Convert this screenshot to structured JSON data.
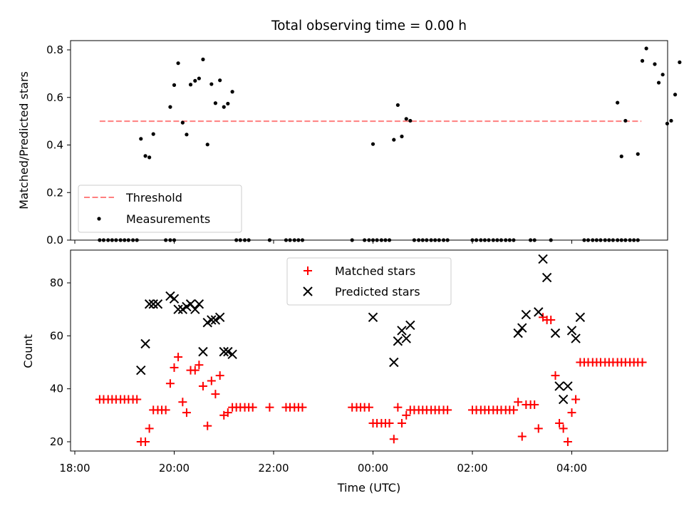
{
  "chart_data": [
    {
      "type": "scatter",
      "title": "Total observing time = 0.00 h",
      "xlabel": "",
      "ylabel": "Matched/Predicted stars",
      "xlim": [
        18.0,
        6.0
      ],
      "ylim": [
        0.0,
        0.85
      ],
      "yticks": [
        "0.0",
        "0.2",
        "0.4",
        "0.6",
        "0.8"
      ],
      "yticks_values": [
        0.0,
        0.2,
        0.4,
        0.6,
        0.8
      ],
      "legend_position": "lower-left",
      "threshold": {
        "name": "Threshold",
        "y": 0.5,
        "x_from": 18.5,
        "x_to": 29.4,
        "color": "#ff7f7f"
      },
      "measurements": {
        "name": "Measurements",
        "color": "#000000",
        "points": [
          [
            18.5,
            0
          ],
          [
            18.58,
            0
          ],
          [
            18.67,
            0
          ],
          [
            18.75,
            0
          ],
          [
            18.83,
            0
          ],
          [
            18.92,
            0
          ],
          [
            19.0,
            0
          ],
          [
            19.08,
            0
          ],
          [
            19.17,
            0
          ],
          [
            19.25,
            0
          ],
          [
            19.83,
            0
          ],
          [
            19.92,
            0
          ],
          [
            20.0,
            0
          ],
          [
            21.25,
            0
          ],
          [
            21.33,
            0
          ],
          [
            21.42,
            0
          ],
          [
            21.5,
            0
          ],
          [
            21.92,
            0
          ],
          [
            22.25,
            0
          ],
          [
            22.33,
            0
          ],
          [
            22.42,
            0
          ],
          [
            22.5,
            0
          ],
          [
            22.58,
            0
          ],
          [
            23.58,
            0
          ],
          [
            23.83,
            0
          ],
          [
            23.92,
            0
          ],
          [
            24.0,
            0
          ],
          [
            24.08,
            0
          ],
          [
            24.17,
            0
          ],
          [
            24.25,
            0
          ],
          [
            24.33,
            0
          ],
          [
            24.83,
            0
          ],
          [
            24.92,
            0
          ],
          [
            25.0,
            0
          ],
          [
            25.08,
            0
          ],
          [
            25.17,
            0
          ],
          [
            25.25,
            0
          ],
          [
            25.33,
            0
          ],
          [
            25.42,
            0
          ],
          [
            25.5,
            0
          ],
          [
            26.0,
            0
          ],
          [
            26.08,
            0
          ],
          [
            26.17,
            0
          ],
          [
            26.25,
            0
          ],
          [
            26.33,
            0
          ],
          [
            26.42,
            0
          ],
          [
            26.5,
            0
          ],
          [
            26.58,
            0
          ],
          [
            26.67,
            0
          ],
          [
            26.75,
            0
          ],
          [
            26.83,
            0
          ],
          [
            27.17,
            0
          ],
          [
            27.25,
            0
          ],
          [
            27.58,
            0
          ],
          [
            28.25,
            0
          ],
          [
            28.33,
            0
          ],
          [
            28.42,
            0
          ],
          [
            28.5,
            0
          ],
          [
            28.58,
            0
          ],
          [
            28.67,
            0
          ],
          [
            28.75,
            0
          ],
          [
            28.83,
            0
          ],
          [
            28.92,
            0
          ],
          [
            29.0,
            0
          ],
          [
            29.08,
            0
          ],
          [
            29.17,
            0
          ],
          [
            29.25,
            0
          ],
          [
            29.33,
            0
          ],
          [
            19.33,
            0.426
          ],
          [
            19.42,
            0.354
          ],
          [
            19.5,
            0.348
          ],
          [
            19.58,
            0.446
          ],
          [
            19.92,
            0.56
          ],
          [
            20.0,
            0.652
          ],
          [
            20.08,
            0.744
          ],
          [
            20.17,
            0.494
          ],
          [
            20.25,
            0.444
          ],
          [
            20.33,
            0.654
          ],
          [
            20.42,
            0.67
          ],
          [
            20.5,
            0.68
          ],
          [
            20.58,
            0.76
          ],
          [
            20.67,
            0.402
          ],
          [
            20.75,
            0.656
          ],
          [
            20.83,
            0.576
          ],
          [
            20.92,
            0.672
          ],
          [
            21.0,
            0.56
          ],
          [
            21.08,
            0.574
          ],
          [
            21.17,
            0.624
          ],
          [
            24.0,
            0.404
          ],
          [
            24.42,
            0.422
          ],
          [
            24.5,
            0.568
          ],
          [
            24.58,
            0.436
          ],
          [
            24.67,
            0.51
          ],
          [
            24.75,
            0.502
          ],
          [
            28.92,
            0.578
          ],
          [
            29.0,
            0.352
          ],
          [
            29.08,
            0.502
          ],
          [
            29.33,
            0.362
          ],
          [
            29.42,
            0.754
          ],
          [
            29.5,
            0.806
          ],
          [
            29.67,
            0.74
          ],
          [
            29.75,
            0.662
          ],
          [
            29.83,
            0.696
          ],
          [
            29.92,
            0.49
          ],
          [
            30.0,
            0.502
          ],
          [
            30.08,
            0.612
          ],
          [
            30.17,
            0.748
          ]
        ]
      }
    },
    {
      "type": "scatter",
      "title": "",
      "xlabel": "Time (UTC)",
      "ylabel": "Count",
      "xlim": [
        18.0,
        6.0
      ],
      "ylim": [
        16,
        93
      ],
      "yticks": [
        "20",
        "40",
        "60",
        "80"
      ],
      "yticks_values": [
        20,
        40,
        60,
        80
      ],
      "xticks": [
        "18:00",
        "20:00",
        "22:00",
        "00:00",
        "02:00",
        "04:00"
      ],
      "xticks_values": [
        18,
        20,
        22,
        24,
        26,
        28
      ],
      "legend_position": "upper-center",
      "series": [
        {
          "name": "Matched stars",
          "marker": "plus",
          "color": "#ff0000",
          "points": [
            [
              18.5,
              36
            ],
            [
              18.58,
              36
            ],
            [
              18.67,
              36
            ],
            [
              18.75,
              36
            ],
            [
              18.83,
              36
            ],
            [
              18.92,
              36
            ],
            [
              19.0,
              36
            ],
            [
              19.08,
              36
            ],
            [
              19.17,
              36
            ],
            [
              19.25,
              36
            ],
            [
              19.33,
              20
            ],
            [
              19.42,
              20
            ],
            [
              19.5,
              25
            ],
            [
              19.58,
              32
            ],
            [
              19.67,
              32
            ],
            [
              19.75,
              32
            ],
            [
              19.83,
              32
            ],
            [
              19.92,
              42
            ],
            [
              20.0,
              48
            ],
            [
              20.08,
              52
            ],
            [
              20.17,
              35
            ],
            [
              20.25,
              31
            ],
            [
              20.33,
              47
            ],
            [
              20.42,
              47
            ],
            [
              20.5,
              49
            ],
            [
              20.58,
              41
            ],
            [
              20.67,
              26
            ],
            [
              20.75,
              43
            ],
            [
              20.83,
              38
            ],
            [
              20.92,
              45
            ],
            [
              21.0,
              30
            ],
            [
              21.08,
              31
            ],
            [
              21.17,
              33
            ],
            [
              21.25,
              33
            ],
            [
              21.33,
              33
            ],
            [
              21.42,
              33
            ],
            [
              21.5,
              33
            ],
            [
              21.58,
              33
            ],
            [
              21.92,
              33
            ],
            [
              22.25,
              33
            ],
            [
              22.33,
              33
            ],
            [
              22.42,
              33
            ],
            [
              22.5,
              33
            ],
            [
              22.58,
              33
            ],
            [
              23.58,
              33
            ],
            [
              23.67,
              33
            ],
            [
              23.75,
              33
            ],
            [
              23.83,
              33
            ],
            [
              23.92,
              33
            ],
            [
              24.0,
              27
            ],
            [
              24.08,
              27
            ],
            [
              24.17,
              27
            ],
            [
              24.25,
              27
            ],
            [
              24.33,
              27
            ],
            [
              24.42,
              21
            ],
            [
              24.5,
              33
            ],
            [
              24.58,
              27
            ],
            [
              24.67,
              30
            ],
            [
              24.75,
              32
            ],
            [
              24.83,
              32
            ],
            [
              24.92,
              32
            ],
            [
              25.0,
              32
            ],
            [
              25.08,
              32
            ],
            [
              25.17,
              32
            ],
            [
              25.25,
              32
            ],
            [
              25.33,
              32
            ],
            [
              25.42,
              32
            ],
            [
              25.5,
              32
            ],
            [
              26.0,
              32
            ],
            [
              26.08,
              32
            ],
            [
              26.17,
              32
            ],
            [
              26.25,
              32
            ],
            [
              26.33,
              32
            ],
            [
              26.42,
              32
            ],
            [
              26.5,
              32
            ],
            [
              26.58,
              32
            ],
            [
              26.67,
              32
            ],
            [
              26.75,
              32
            ],
            [
              26.83,
              32
            ],
            [
              26.92,
              35
            ],
            [
              27.0,
              22
            ],
            [
              27.08,
              34
            ],
            [
              27.17,
              34
            ],
            [
              27.25,
              34
            ],
            [
              27.33,
              25
            ],
            [
              27.42,
              67
            ],
            [
              27.5,
              66
            ],
            [
              27.58,
              66
            ],
            [
              27.67,
              45
            ],
            [
              27.75,
              27
            ],
            [
              27.83,
              25
            ],
            [
              27.92,
              20
            ],
            [
              28.0,
              31
            ],
            [
              28.08,
              36
            ],
            [
              28.17,
              50
            ],
            [
              28.25,
              50
            ],
            [
              28.33,
              50
            ],
            [
              28.42,
              50
            ],
            [
              28.5,
              50
            ],
            [
              28.58,
              50
            ],
            [
              28.67,
              50
            ],
            [
              28.75,
              50
            ],
            [
              28.83,
              50
            ],
            [
              28.92,
              50
            ],
            [
              29.0,
              50
            ],
            [
              29.08,
              50
            ],
            [
              29.17,
              50
            ],
            [
              29.25,
              50
            ],
            [
              29.33,
              50
            ],
            [
              29.42,
              50
            ]
          ]
        },
        {
          "name": "Predicted stars",
          "marker": "x",
          "color": "#000000",
          "points": [
            [
              19.33,
              47
            ],
            [
              19.42,
              57
            ],
            [
              19.5,
              72
            ],
            [
              19.58,
              72
            ],
            [
              19.67,
              72
            ],
            [
              19.92,
              75
            ],
            [
              20.0,
              74
            ],
            [
              20.08,
              70
            ],
            [
              20.17,
              70
            ],
            [
              20.25,
              71
            ],
            [
              20.33,
              72
            ],
            [
              20.42,
              70
            ],
            [
              20.5,
              72
            ],
            [
              20.58,
              54
            ],
            [
              20.67,
              65
            ],
            [
              20.75,
              66
            ],
            [
              20.83,
              66
            ],
            [
              20.92,
              67
            ],
            [
              21.0,
              54
            ],
            [
              21.08,
              54
            ],
            [
              21.17,
              53
            ],
            [
              24.0,
              67
            ],
            [
              24.42,
              50
            ],
            [
              24.5,
              58
            ],
            [
              24.58,
              62
            ],
            [
              24.67,
              59
            ],
            [
              24.75,
              64
            ],
            [
              26.92,
              61
            ],
            [
              27.0,
              63
            ],
            [
              27.08,
              68
            ],
            [
              27.33,
              69
            ],
            [
              27.42,
              89
            ],
            [
              27.5,
              82
            ],
            [
              27.67,
              61
            ],
            [
              27.75,
              41
            ],
            [
              27.83,
              36
            ],
            [
              27.92,
              41
            ],
            [
              28.0,
              62
            ],
            [
              28.08,
              59
            ],
            [
              28.17,
              67
            ]
          ]
        }
      ]
    }
  ]
}
